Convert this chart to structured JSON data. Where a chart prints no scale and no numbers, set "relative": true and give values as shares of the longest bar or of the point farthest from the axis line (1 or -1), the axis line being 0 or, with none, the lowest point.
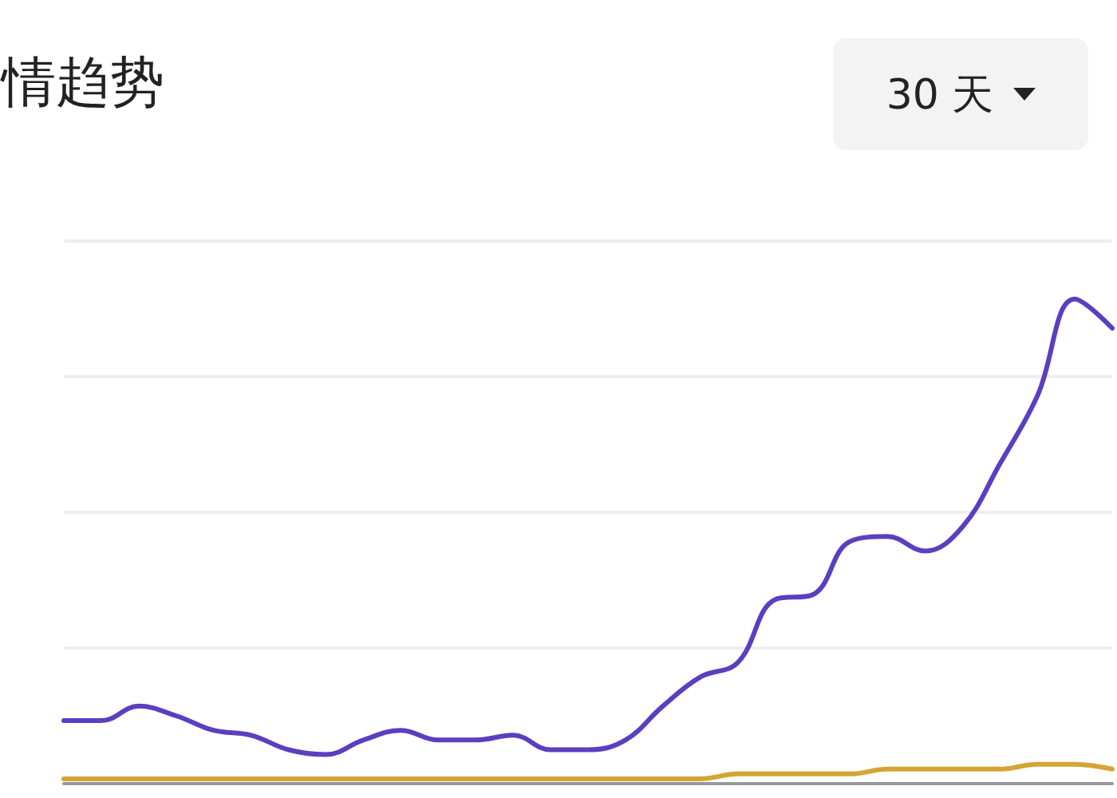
{
  "chart_data": {
    "type": "line",
    "title": "情趋势",
    "annotations": [
      "30 天"
    ],
    "relative": true,
    "grid": "y",
    "marker": "none",
    "line_style": "solid",
    "categories": [
      null,
      null,
      null,
      null,
      null,
      null,
      null,
      null,
      null,
      null,
      null,
      null,
      null,
      null,
      null,
      null,
      null,
      null,
      null,
      null,
      null,
      null,
      null,
      null,
      null,
      null,
      null,
      null,
      null
    ],
    "series": [
      {
        "color": "#5b3fbf",
        "values": [
          0.13,
          0.13,
          0.16,
          0.14,
          0.11,
          0.1,
          0.07,
          0.06,
          0.09,
          0.11,
          0.09,
          0.09,
          0.1,
          0.07,
          0.07,
          0.09,
          0.16,
          0.22,
          0.25,
          0.38,
          0.39,
          0.5,
          0.51,
          0.48,
          0.53,
          0.66,
          0.8,
          1,
          0.94
        ]
      },
      {
        "color": "#d4a534",
        "values": [
          0.01,
          0.01,
          0.01,
          0.01,
          0.01,
          0.01,
          0.01,
          0.01,
          0.01,
          0.01,
          0.01,
          0.01,
          0.01,
          0.01,
          0.01,
          0.01,
          0.01,
          0.01,
          0.02,
          0.02,
          0.02,
          0.02,
          0.03,
          0.03,
          0.03,
          0.03,
          0.04,
          0.04,
          0.03
        ]
      }
    ]
  }
}
